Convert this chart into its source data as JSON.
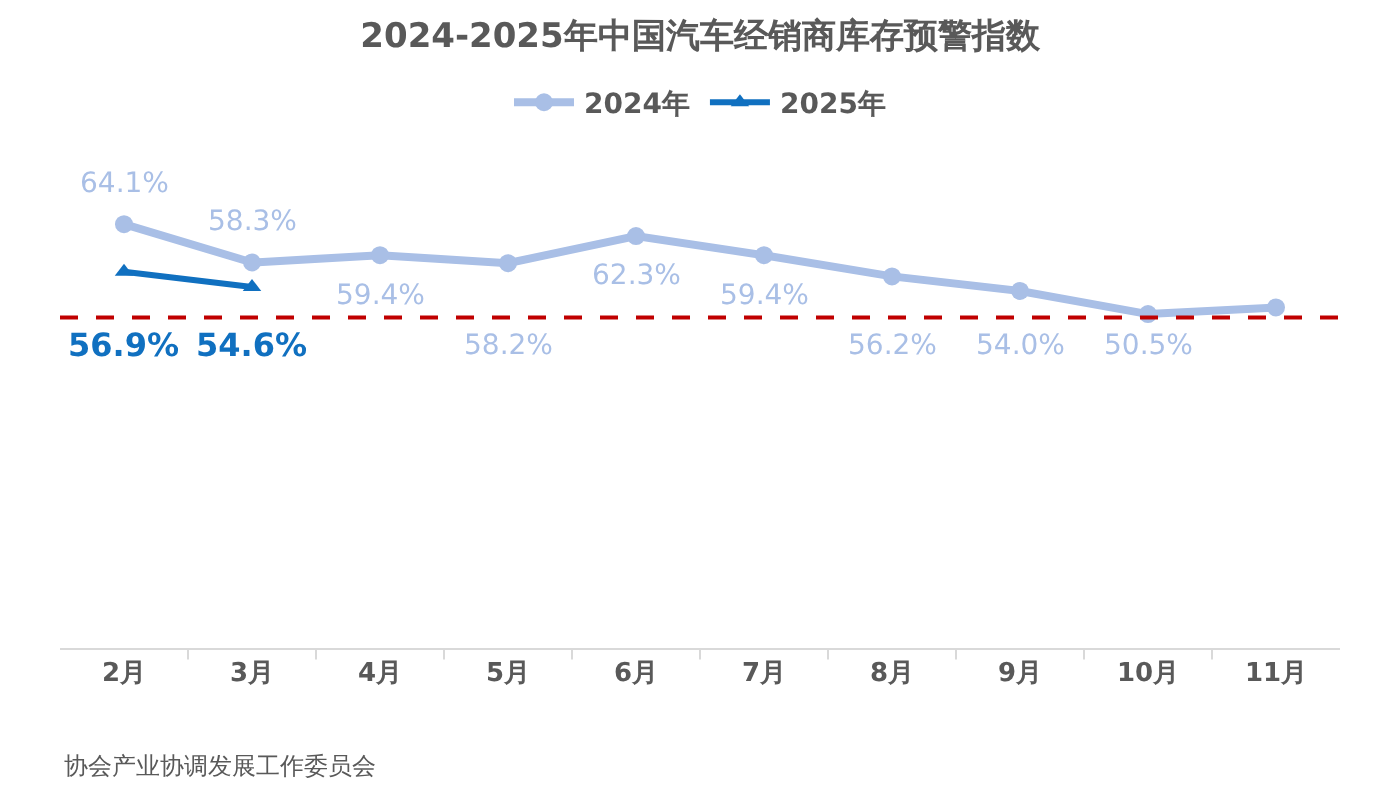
{
  "chart_data": {
    "type": "line",
    "title": "2024-2025年中国汽车经销商库存预警指数",
    "categories": [
      "2月",
      "3月",
      "4月",
      "5月",
      "6月",
      "7月",
      "8月",
      "9月",
      "10月",
      "11月"
    ],
    "series": [
      {
        "name": "2024年",
        "color": "#a9bfe6",
        "marker": "circle",
        "values": [
          64.1,
          58.3,
          59.4,
          58.2,
          62.3,
          59.4,
          56.2,
          54.0,
          50.5,
          51.5
        ],
        "value_labels": [
          "64.1%",
          "58.3%",
          "59.4%",
          "58.2%",
          "62.3%",
          "59.4%",
          "56.2%",
          "54.0%",
          "50.5%",
          null
        ]
      },
      {
        "name": "2025年",
        "color": "#1070c0",
        "marker": "triangle",
        "values": [
          56.9,
          54.6,
          null,
          null,
          null,
          null,
          null,
          null,
          null,
          null
        ],
        "value_labels": [
          "56.9%",
          "54.6%",
          null,
          null,
          null,
          null,
          null,
          null,
          null,
          null
        ]
      }
    ],
    "tick_labels": "x",
    "legend": "top",
    "line_style": "solid",
    "ref_lines": [
      {
        "axis": "y",
        "value": 50,
        "color": "#c00000",
        "line_style": "dashed"
      }
    ],
    "annotations": [
      "协会产业协调发展工作委员会"
    ]
  }
}
